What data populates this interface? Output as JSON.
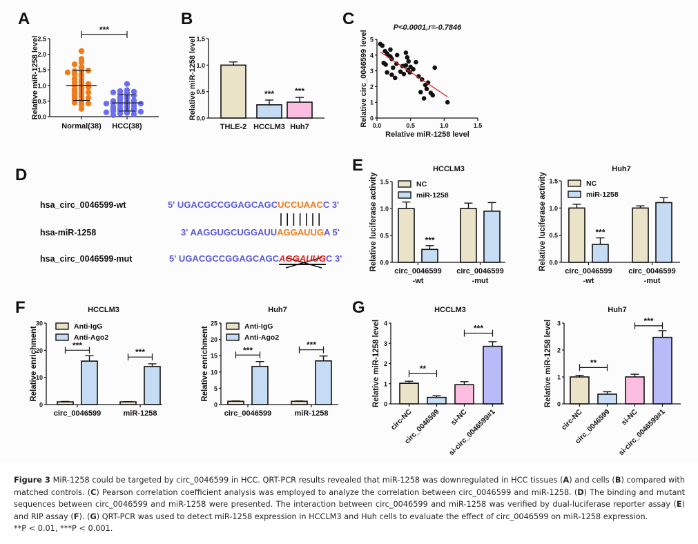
{
  "panel_letters": {
    "A": "A",
    "B": "B",
    "C": "C",
    "D": "D",
    "E": "E",
    "F": "F",
    "G": "G"
  },
  "colors": {
    "orange": "#f07c1c",
    "blue_dot": "#6b6ef0",
    "beige": "#ebe3c8",
    "light_blue": "#c6dcf5",
    "pink": "#fbbde0",
    "lavender": "#b9bbf8",
    "red_line": "#d9262b",
    "seq_blue": "#5b5bd6"
  },
  "chart_data": [
    {
      "id": "A",
      "type": "scatter",
      "title": "",
      "xlabel": "",
      "ylabel": "Relative miR-1258 level",
      "categories": [
        "Normal(38)",
        "HCC(38)"
      ],
      "ylim": [
        0,
        2.5
      ],
      "yticks": [
        "0.0",
        "0.5",
        "1.0",
        "1.5",
        "2.0",
        "2.5"
      ],
      "significance": "***",
      "series": [
        {
          "name": "Normal(38)",
          "color": "#f07c1c",
          "mean": 1.0,
          "sd": 0.48,
          "values": [
            2.1,
            1.85,
            1.75,
            1.68,
            1.6,
            1.55,
            1.47,
            1.46,
            1.48,
            1.42,
            1.35,
            1.36,
            1.3,
            1.22,
            1.18,
            1.12,
            1.1,
            1.05,
            1.02,
            1.0,
            0.95,
            0.92,
            0.88,
            0.85,
            0.8,
            0.78,
            0.75,
            0.7,
            0.65,
            0.62,
            0.6,
            0.55,
            0.55,
            0.48,
            0.45,
            0.42,
            0.38,
            0.25
          ]
        },
        {
          "name": "HCC(38)",
          "color": "#6b6ef0",
          "mean": 0.44,
          "sd": 0.26,
          "values": [
            1.05,
            0.85,
            0.82,
            0.8,
            0.78,
            0.76,
            0.72,
            0.68,
            0.65,
            0.62,
            0.58,
            0.55,
            0.52,
            0.5,
            0.48,
            0.46,
            0.45,
            0.44,
            0.42,
            0.42,
            0.4,
            0.38,
            0.35,
            0.32,
            0.3,
            0.28,
            0.26,
            0.24,
            0.22,
            0.2,
            0.2,
            0.18,
            0.16,
            0.14,
            0.12,
            0.1,
            0.08,
            0.05
          ]
        }
      ]
    },
    {
      "id": "B",
      "type": "bar",
      "title": "",
      "xlabel": "",
      "ylabel": "Relative miR-1258 level",
      "categories": [
        "THLE-2",
        "HCCLM3",
        "Huh7"
      ],
      "values": [
        1.0,
        0.25,
        0.3
      ],
      "errors": [
        0.06,
        0.09,
        0.09
      ],
      "colors": [
        "#ebe3c8",
        "#c6dcf5",
        "#fbbde0"
      ],
      "annotations": [
        "",
        "***",
        "***"
      ],
      "ylim": [
        0,
        1.5
      ],
      "yticks": [
        "0.0",
        "0.5",
        "1.0",
        "1.5"
      ]
    },
    {
      "id": "C",
      "type": "scatter",
      "title": "P<0.0001,r=-0.7846",
      "xlabel": "Relative miR-1258 level",
      "ylabel": "Relative circ_0046599 level",
      "xlim": [
        0,
        1.5
      ],
      "ylim": [
        0,
        5
      ],
      "xticks": [
        "0.0",
        "0.5",
        "1.0",
        "1.5"
      ],
      "yticks": [
        "0",
        "1",
        "2",
        "3",
        "4",
        "5"
      ],
      "points": [
        [
          0.05,
          4.7
        ],
        [
          0.08,
          4.6
        ],
        [
          0.12,
          4.25
        ],
        [
          0.2,
          4.35
        ],
        [
          0.15,
          4.1
        ],
        [
          0.18,
          3.95
        ],
        [
          0.2,
          3.9
        ],
        [
          0.22,
          3.75
        ],
        [
          0.3,
          4.0
        ],
        [
          0.1,
          3.5
        ],
        [
          0.13,
          3.4
        ],
        [
          0.15,
          2.9
        ],
        [
          0.24,
          3.2
        ],
        [
          0.22,
          2.75
        ],
        [
          0.27,
          2.55
        ],
        [
          0.29,
          3.45
        ],
        [
          0.35,
          2.95
        ],
        [
          0.38,
          3.3
        ],
        [
          0.4,
          3.3
        ],
        [
          0.4,
          2.8
        ],
        [
          0.43,
          3.35
        ],
        [
          0.43,
          4.15
        ],
        [
          0.45,
          3.85
        ],
        [
          0.47,
          3.6
        ],
        [
          0.46,
          3.05
        ],
        [
          0.5,
          3.25
        ],
        [
          0.49,
          2.9
        ],
        [
          0.54,
          3.1
        ],
        [
          0.58,
          3.55
        ],
        [
          0.62,
          2.65
        ],
        [
          0.67,
          2.45
        ],
        [
          0.65,
          1.65
        ],
        [
          0.7,
          1.25
        ],
        [
          0.72,
          2.1
        ],
        [
          0.74,
          1.85
        ],
        [
          0.76,
          2.25
        ],
        [
          0.8,
          1.6
        ],
        [
          0.83,
          1.45
        ],
        [
          0.86,
          3.2
        ],
        [
          1.05,
          1.0
        ]
      ],
      "fit_line": {
        "x": [
          0.05,
          1.05
        ],
        "y": [
          4.2,
          1.35
        ],
        "color": "#d9262b"
      }
    },
    {
      "id": "E1",
      "type": "bar",
      "title": "HCCLM3",
      "ylabel": "Relative luciferase activity",
      "categories": [
        "circ_0046599\n-wt",
        "circ_0046599\n-mut"
      ],
      "category_lines": [
        [
          "circ_0046599",
          "-wt"
        ],
        [
          "circ_0046599",
          "-mut"
        ]
      ],
      "ylim": [
        0,
        1.5
      ],
      "yticks": [
        "0.0",
        "0.5",
        "1.0",
        "1.5"
      ],
      "legend": "top-left",
      "series": [
        {
          "name": "NC",
          "color": "#ebe3c8",
          "values": [
            1.0,
            1.0
          ],
          "errors": [
            0.12,
            0.1
          ]
        },
        {
          "name": "miR-1258",
          "color": "#c6dcf5",
          "values": [
            0.24,
            0.95
          ],
          "errors": [
            0.07,
            0.16
          ]
        }
      ],
      "annotations": [
        {
          "series": 1,
          "index": 0,
          "text": "***"
        }
      ]
    },
    {
      "id": "E2",
      "type": "bar",
      "title": "Huh7",
      "ylabel": "Relative luciferase activity",
      "categories": [
        "circ_0046599\n-wt",
        "circ_0046599\n-mut"
      ],
      "category_lines": [
        [
          "circ_0046599",
          "-wt"
        ],
        [
          "circ_0046599",
          "-mut"
        ]
      ],
      "ylim": [
        0,
        1.5
      ],
      "yticks": [
        "0.0",
        "0.5",
        "1.0",
        "1.5"
      ],
      "legend": "top-left",
      "series": [
        {
          "name": "NC",
          "color": "#ebe3c8",
          "values": [
            1.0,
            1.0
          ],
          "errors": [
            0.07,
            0.04
          ]
        },
        {
          "name": "miR-1258",
          "color": "#c6dcf5",
          "values": [
            0.33,
            1.1
          ],
          "errors": [
            0.12,
            0.09
          ]
        }
      ],
      "annotations": [
        {
          "series": 1,
          "index": 0,
          "text": "***"
        }
      ]
    },
    {
      "id": "F1",
      "type": "bar",
      "title": "HCCLM3",
      "ylabel": "Relative enrichment",
      "categories": [
        "circ_0046599",
        "miR-1258"
      ],
      "category_lines": [
        [
          "circ_0046599"
        ],
        [
          "miR-1258"
        ]
      ],
      "ylim": [
        0,
        30
      ],
      "yticks": [
        "0",
        "10",
        "20",
        "30"
      ],
      "legend": "top-left",
      "series": [
        {
          "name": "Anti-IgG",
          "color": "#ebe3c8",
          "values": [
            1.0,
            1.0
          ],
          "errors": [
            0.15,
            0.1
          ]
        },
        {
          "name": "Anti-Ago2",
          "color": "#c6dcf5",
          "values": [
            16.0,
            14.0
          ],
          "errors": [
            2.0,
            1.0
          ]
        }
      ],
      "brackets": [
        {
          "index": 0,
          "level": 20,
          "text": "***"
        },
        {
          "index": 1,
          "level": 17.5,
          "text": "***"
        }
      ]
    },
    {
      "id": "F2",
      "type": "bar",
      "title": "Huh7",
      "ylabel": "Relative enrichment",
      "categories": [
        "circ_0046599",
        "miR-1258"
      ],
      "category_lines": [
        [
          "circ_0046599"
        ],
        [
          "miR-1258"
        ]
      ],
      "ylim": [
        0,
        25
      ],
      "yticks": [
        "0",
        "5",
        "10",
        "15",
        "20",
        "25"
      ],
      "legend": "top-left",
      "series": [
        {
          "name": "Anti-IgG",
          "color": "#ebe3c8",
          "values": [
            1.0,
            1.0
          ],
          "errors": [
            0.1,
            0.1
          ]
        },
        {
          "name": "Anti-Ago2",
          "color": "#c6dcf5",
          "values": [
            11.7,
            13.4
          ],
          "errors": [
            1.5,
            1.5
          ]
        }
      ],
      "brackets": [
        {
          "index": 0,
          "level": 15.2,
          "text": "***"
        },
        {
          "index": 1,
          "level": 16.8,
          "text": "***"
        }
      ]
    },
    {
      "id": "G1",
      "type": "bar",
      "title": "HCCLM3",
      "ylabel": "Relative miR-1258 level",
      "categories": [
        "circ-NC",
        "circ_0046599",
        "si-NC",
        "si-circ_0046599#1"
      ],
      "values": [
        1.02,
        0.32,
        0.95,
        2.85
      ],
      "errors": [
        0.1,
        0.08,
        0.15,
        0.23
      ],
      "colors": [
        "#ebe3c8",
        "#c6dcf5",
        "#fbbde0",
        "#b9bbf8"
      ],
      "ylim": [
        0,
        4
      ],
      "yticks": [
        "0",
        "1",
        "2",
        "3",
        "4"
      ],
      "brackets": [
        {
          "from": 0,
          "to": 1,
          "level": 1.5,
          "text": "**"
        },
        {
          "from": 2,
          "to": 3,
          "level": 3.5,
          "text": "***"
        }
      ]
    },
    {
      "id": "G2",
      "type": "bar",
      "title": "Huh7",
      "ylabel": "Relative miR-1258 level",
      "categories": [
        "circ-NC",
        "circ_0046599",
        "si-NC",
        "si-circ_0046599#1"
      ],
      "values": [
        1.0,
        0.36,
        1.0,
        2.47
      ],
      "errors": [
        0.06,
        0.09,
        0.1,
        0.25
      ],
      "colors": [
        "#ebe3c8",
        "#c6dcf5",
        "#fbbde0",
        "#b9bbf8"
      ],
      "ylim": [
        0,
        3
      ],
      "yticks": [
        "0",
        "1",
        "2",
        "3"
      ],
      "brackets": [
        {
          "from": 0,
          "to": 1,
          "level": 1.35,
          "text": "**"
        },
        {
          "from": 2,
          "to": 3,
          "level": 2.9,
          "text": "***"
        }
      ]
    }
  ],
  "panel_d": {
    "rows": [
      {
        "label": "hsa_circ_0046599-wt",
        "prefix": "5' UGACGCCGGAGCAGC",
        "highlight": "UCCUAAC",
        "suffix": "C 3'",
        "style": "hl"
      },
      {
        "label": "hsa-miR-1258",
        "prefix": "3' AAGGUGCUGGAUU",
        "highlight": "AGGAUUG",
        "suffix": "A 5'",
        "style": "hl"
      },
      {
        "label": "hsa_circ_0046599-mut",
        "prefix": "5' UGACGCCGGAGCAGC",
        "highlight": "AGGAUUG",
        "suffix": "C 3'",
        "style": "mut"
      }
    ]
  },
  "caption": {
    "fig_label": "Figure 3",
    "p1": " MiR-1258 could be targeted by circ_0046599 in HCC. QRT-PCR results revealed that miR-1258 was downregulated in HCC tissues (",
    "A": "A",
    "p2": ") and cells (",
    "B": "B",
    "p3": ") compared with matched controls. (",
    "C": "C",
    "p4": ") Pearson correlation coefficient analysis was employed to analyze the correlation between circ_0046599 and miR-1258. (",
    "D": "D",
    "p5": ") The binding and mutant sequences between circ_0046599 and miR-1258 were presented. The interaction between circ_0046599 and miR-1258 was verified by dual-luciferase reporter assay (",
    "E": "E",
    "p6": ") and RIP assay (",
    "F": "F",
    "p7": "). (",
    "G": "G",
    "p8": ") QRT-PCR was used to detect miR-1258 expression in HCCLM3 and Huh cells to evaluate the effect of circ_0046599 on miR-1258 expression.",
    "p_values": "**P < 0.01, ***P < 0.001."
  }
}
